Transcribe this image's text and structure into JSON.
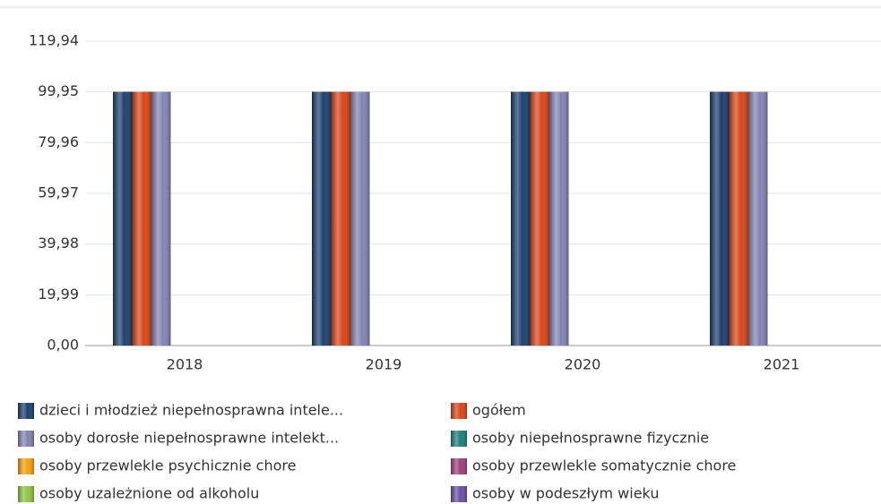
{
  "chart_data": {
    "type": "bar",
    "categories": [
      "2018",
      "2019",
      "2020",
      "2021"
    ],
    "series": [
      {
        "name": "dzieci i młodzież niepełnosprawna intele...",
        "color": "#1f3f6e",
        "values": [
          100,
          100,
          100,
          100
        ]
      },
      {
        "name": "ogółem",
        "color": "#d9461a",
        "values": [
          100,
          100,
          100,
          100
        ]
      },
      {
        "name": "osoby dorosłe niepełnosprawne intelekt...",
        "color": "#8484b4",
        "values": [
          100,
          100,
          100,
          100
        ]
      },
      {
        "name": "osoby niepełnosprawne fizycznie",
        "color": "#1e7f7a",
        "values": [
          0,
          0,
          0,
          0
        ]
      },
      {
        "name": "osoby przewlekle psychicznie chore",
        "color": "#f5a011",
        "values": [
          0,
          0,
          0,
          0
        ]
      },
      {
        "name": "osoby przewlekle somatycznie chore",
        "color": "#a0407a",
        "values": [
          0,
          0,
          0,
          0
        ]
      },
      {
        "name": "osoby uzależnione od alkoholu",
        "color": "#8dc63f",
        "values": [
          0,
          0,
          0,
          0
        ]
      },
      {
        "name": "osoby w podeszłym wieku",
        "color": "#6a4fa8",
        "values": [
          0,
          0,
          0,
          0
        ]
      }
    ],
    "ylim": [
      0,
      119.94
    ],
    "yticks": [
      {
        "value": 0,
        "label": "0,00"
      },
      {
        "value": 19.99,
        "label": "19,99"
      },
      {
        "value": 39.98,
        "label": "39,98"
      },
      {
        "value": 59.97,
        "label": "59,97"
      },
      {
        "value": 79.96,
        "label": "79,96"
      },
      {
        "value": 99.95,
        "label": "99,95"
      },
      {
        "value": 119.94,
        "label": "119,94"
      }
    ],
    "grid": true
  }
}
